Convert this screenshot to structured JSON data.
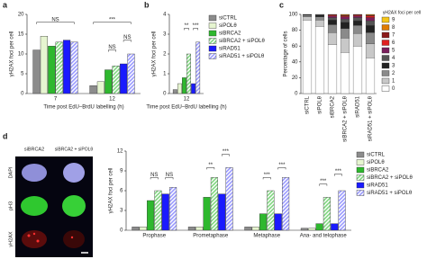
{
  "chart_data": [
    {
      "type": "bar",
      "panel": "a",
      "y_label": "γH2AX foci per cell",
      "x_label": "Time post EdU–BrdU labelling (h)",
      "categories": [
        "7",
        "12"
      ],
      "ylim": [
        0,
        20
      ],
      "yticks": [
        0,
        5,
        10,
        15,
        20
      ],
      "series": [
        {
          "color": "#8c8c8c",
          "values": [
            11,
            2
          ]
        },
        {
          "color": "#e6f5d0",
          "values": [
            14.5,
            3
          ]
        },
        {
          "color": "#2eb82e",
          "values": [
            12,
            6
          ]
        },
        {
          "color": "#7fd67f",
          "hatch": true,
          "values": [
            13,
            7
          ]
        },
        {
          "color": "#1a1aff",
          "values": [
            13.5,
            7.5
          ]
        },
        {
          "color": "#9999ff",
          "hatch": true,
          "values": [
            13,
            10
          ]
        }
      ],
      "annotations": [
        "NS",
        "***",
        "NS",
        "NS"
      ]
    },
    {
      "type": "bar",
      "panel": "b",
      "y_label": "γH2AX foci per cell",
      "x_label": "Time post EdU–BrdU labelling (h)",
      "categories": [
        "12"
      ],
      "ylim": [
        0,
        4
      ],
      "yticks": [
        0,
        1,
        2,
        3,
        4
      ],
      "legend": "right",
      "series": [
        {
          "name": "siCTRL",
          "color": "#8c8c8c",
          "values": [
            0.2
          ]
        },
        {
          "name": "siPOLθ",
          "color": "#e6f5d0",
          "values": [
            0.5
          ]
        },
        {
          "name": "siBRCA2",
          "color": "#2eb82e",
          "values": [
            0.8
          ]
        },
        {
          "name": "siBRCA2 + siPOLθ",
          "color": "#7fd67f",
          "hatch": true,
          "values": [
            2
          ]
        },
        {
          "name": "siRAD51",
          "color": "#1a1aff",
          "values": [
            0.5
          ]
        },
        {
          "name": "siRAD51 + siPOLθ",
          "color": "#9999ff",
          "hatch": true,
          "values": [
            2.6
          ]
        }
      ],
      "annotations": [
        "**",
        "***"
      ]
    },
    {
      "type": "stacked_bar",
      "panel": "c",
      "y_label": "Percentage of cells",
      "legend_title": "γH2AX foci per cell",
      "categories": [
        "siCTRL",
        "siPOLθ",
        "siBRCA2",
        "siBRCA2 + siPOLθ",
        "siRAD51",
        "siRAD51 + siPOLθ"
      ],
      "ylim": [
        0,
        100
      ],
      "yticks": [
        0,
        20,
        40,
        60,
        80,
        100
      ],
      "legend": "right",
      "series": [
        {
          "name": "0",
          "color": "#ffffff",
          "values": [
            93,
            85,
            62,
            52,
            60,
            45
          ]
        },
        {
          "name": "1",
          "color": "#c8c8c8",
          "values": [
            4,
            8,
            15,
            18,
            16,
            18
          ]
        },
        {
          "name": "2",
          "color": "#8a8a8a",
          "values": [
            2,
            4,
            10,
            12,
            10,
            14
          ]
        },
        {
          "name": "3",
          "color": "#222222",
          "values": [
            1,
            2,
            6,
            8,
            6,
            9
          ]
        },
        {
          "name": "4",
          "color": "#555555",
          "values": [
            0,
            1,
            3,
            4,
            4,
            6
          ]
        },
        {
          "name": "5",
          "color": "#7a1f5c",
          "values": [
            0,
            0,
            2,
            3,
            2,
            4
          ]
        },
        {
          "name": "6",
          "color": "#e02020",
          "values": [
            0,
            0,
            1,
            1,
            1,
            2
          ]
        },
        {
          "name": "7",
          "color": "#8b1a1a",
          "values": [
            0,
            0,
            1,
            1,
            1,
            1
          ]
        },
        {
          "name": "8",
          "color": "#e07b00",
          "values": [
            0,
            0,
            0,
            1,
            0,
            1
          ]
        },
        {
          "name": "9",
          "color": "#f5c518",
          "values": [
            0,
            0,
            0,
            0,
            0,
            0
          ]
        }
      ]
    },
    {
      "type": "bar",
      "y_label": "γH2AX foci per cell",
      "categories": [
        "Prophase",
        "Prometaphase",
        "Metaphase",
        "Ana- and telophase"
      ],
      "ylim": [
        0,
        12
      ],
      "yticks": [
        0,
        3,
        6,
        9,
        12
      ],
      "legend": "right",
      "series": [
        {
          "name": "siCTRL",
          "color": "#8c8c8c",
          "values": [
            0.5,
            0.5,
            0.5,
            0.3
          ]
        },
        {
          "name": "siPOLθ",
          "color": "#e6f5d0",
          "values": [
            0.5,
            0.5,
            0.5,
            0.3
          ]
        },
        {
          "name": "siBRCA2",
          "color": "#2eb82e",
          "values": [
            4.5,
            5,
            2.5,
            1
          ]
        },
        {
          "name": "siBRCA2 + siPOLθ",
          "color": "#7fd67f",
          "hatch": true,
          "values": [
            6,
            8,
            6,
            5
          ]
        },
        {
          "name": "siRAD51",
          "color": "#1a1aff",
          "values": [
            5.5,
            5.5,
            2.5,
            1
          ]
        },
        {
          "name": "siRAD51 + siPOLθ",
          "color": "#9999ff",
          "hatch": true,
          "values": [
            6.5,
            9.5,
            8,
            6
          ]
        }
      ],
      "annotations": [
        "NS",
        "NS",
        "**",
        "***",
        "***",
        "***",
        "***",
        "***"
      ]
    }
  ],
  "micrographs": {
    "panel": "d",
    "columns": [
      "siBRCA2",
      "siBRCA2 + siPOLθ"
    ],
    "rows": [
      "DAPI",
      "pH3",
      "γH2AX"
    ]
  }
}
